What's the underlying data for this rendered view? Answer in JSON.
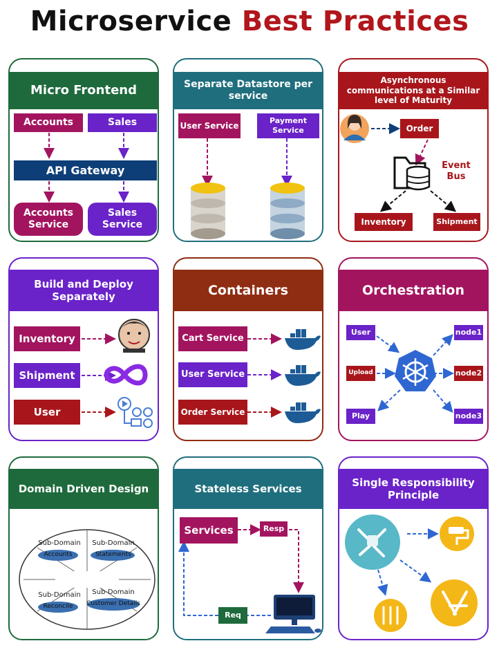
{
  "title": {
    "part1": "Microservice",
    "part2": "Best Practices"
  },
  "cards": {
    "micro_frontend": {
      "title": "Micro Frontend",
      "accounts": "Accounts",
      "sales": "Sales",
      "gateway": "API Gateway",
      "accounts_service": "Accounts Service",
      "sales_service": "Sales Service"
    },
    "separate_datastore": {
      "title": "Separate Datastore per service",
      "user_service": "User Service",
      "payment_service": "Payment Service"
    },
    "async_comm": {
      "title": "Asynchronous communications at a Similar level of Maturity",
      "order": "Order",
      "event_bus": "Event Bus",
      "inventory": "Inventory",
      "shipment": "Shipment"
    },
    "build_deploy": {
      "title": "Build and Deploy Separately",
      "inventory": "Inventory",
      "shipment": "Shipment",
      "user": "User"
    },
    "containers": {
      "title": "Containers",
      "cart": "Cart Service",
      "user": "User Service",
      "order": "Order Service"
    },
    "orchestration": {
      "title": "Orchestration",
      "user": "User",
      "upload": "Upload",
      "play": "Play",
      "node1": "node1",
      "node2": "node2",
      "node3": "node3"
    },
    "ddd": {
      "title": "Domain Driven Design",
      "d1_title": "Sub-Domain",
      "d1_label": "Accounts",
      "d2_title": "Sub-Domain",
      "d2_label": "Statements",
      "d3_title": "Sub-Domain",
      "d3_label": "Reconcile",
      "d4_title": "Sub-Domain",
      "d4_label": "Customer Details"
    },
    "stateless": {
      "title": "Stateless Services",
      "services": "Services",
      "resp": "Resp",
      "req": "Req"
    },
    "srp": {
      "title": "Single Responsibility Principle"
    }
  },
  "colors": {
    "green": "#1e6a3c",
    "teal": "#1f6e7d",
    "red": "#a8161b",
    "purple": "#6a22c9",
    "brown": "#8f2d12",
    "magenta": "#a3145f",
    "navy": "#0d3e78",
    "blue": "#2f67d2",
    "yellow": "#f4b718",
    "cyan": "#58b8c8"
  }
}
